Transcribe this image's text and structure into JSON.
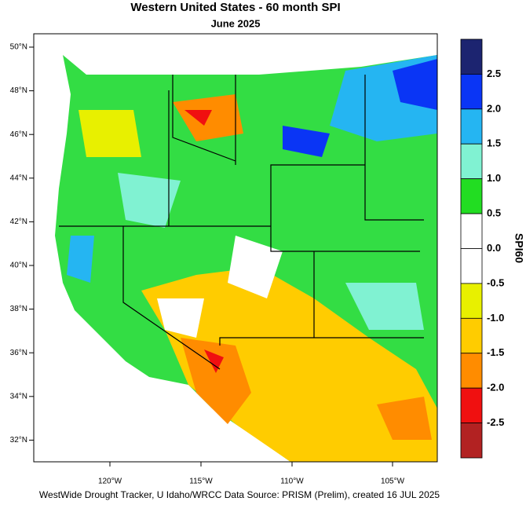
{
  "header": {
    "title": "Western United States - 60 month SPI",
    "subtitle": "June 2025"
  },
  "map": {
    "lat_labels": [
      "50°N",
      "48°N",
      "46°N",
      "44°N",
      "42°N",
      "40°N",
      "38°N",
      "36°N",
      "34°N",
      "32°N"
    ],
    "lon_labels": [
      "120°W",
      "115°W",
      "110°W",
      "105°W"
    ]
  },
  "colorbar": {
    "title": "SPI60",
    "colors": [
      "#1c2470",
      "#0a35f5",
      "#25b5f2",
      "#80f2d2",
      "#22dd22",
      "#ffffff",
      "#ffffff",
      "#e8f000",
      "#ffcc00",
      "#ff8c00",
      "#f01010",
      "#b22222"
    ],
    "ticks": [
      "2.5",
      "2.0",
      "1.5",
      "1.0",
      "0.5",
      "0.0",
      "-0.5",
      "-1.0",
      "-1.5",
      "-2.0",
      "-2.5"
    ]
  },
  "footer": {
    "credit": "WestWide Drought Tracker, U Idaho/WRCC Data Source: PRISM (Prelim), created 16 JUL 2025"
  }
}
